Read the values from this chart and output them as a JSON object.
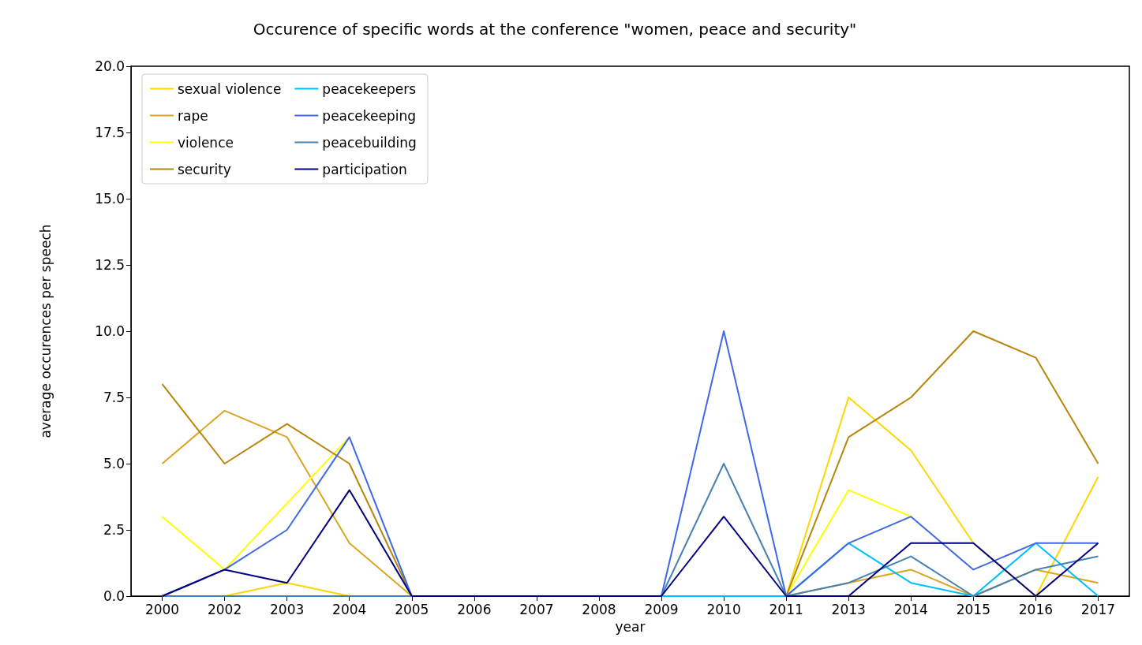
{
  "chart_data": {
    "type": "line",
    "title": "Occurence of specific words at the conference \"women, peace and security\"",
    "xlabel": "year",
    "ylabel": "average occurences per speech",
    "categories": [
      "2000",
      "2002",
      "2003",
      "2004",
      "2005",
      "2006",
      "2007",
      "2008",
      "2009",
      "2010",
      "2011",
      "2013",
      "2014",
      "2015",
      "2016",
      "2017"
    ],
    "series": [
      {
        "name": "sexual violence",
        "color": "#ffd700",
        "values": [
          0,
          0,
          0.5,
          0,
          0,
          0,
          0,
          0,
          0,
          0,
          0,
          7.5,
          5.5,
          2,
          0,
          4.5
        ]
      },
      {
        "name": "rape",
        "color": "#daa520",
        "values": [
          5,
          7,
          6,
          2,
          0,
          0,
          0,
          0,
          0,
          0,
          0,
          0.5,
          1,
          0,
          1,
          0.5
        ]
      },
      {
        "name": "violence",
        "color": "#ffff00",
        "values": [
          3,
          1,
          3.5,
          6,
          null,
          null,
          null,
          null,
          null,
          null,
          0,
          4,
          3,
          null,
          null,
          null
        ]
      },
      {
        "name": "security",
        "color": "#b8860b",
        "values": [
          8,
          5,
          6.5,
          5,
          0,
          0,
          0,
          0,
          0,
          0,
          0,
          6,
          7.5,
          10,
          9,
          5
        ]
      },
      {
        "name": "peacekeepers",
        "color": "#00bfff",
        "values": [
          null,
          null,
          null,
          null,
          null,
          null,
          null,
          0,
          0,
          0,
          0,
          2,
          0.5,
          0,
          2,
          0
        ]
      },
      {
        "name": "peacekeeping",
        "color": "#4169e1",
        "values": [
          0,
          1,
          2.5,
          6,
          0,
          0,
          0,
          0,
          0,
          10,
          0,
          2,
          3,
          1,
          2,
          2
        ]
      },
      {
        "name": "peacebuilding",
        "color": "#4682b4",
        "values": [
          0,
          0,
          0,
          0,
          0,
          0,
          0,
          0,
          0,
          5,
          0,
          0.5,
          1.5,
          0,
          1,
          1.5
        ]
      },
      {
        "name": "participation",
        "color": "#000080",
        "values": [
          0,
          1,
          0.5,
          4,
          0,
          0,
          0,
          0,
          0,
          3,
          0,
          0,
          2,
          2,
          0,
          2
        ]
      }
    ],
    "ylim": [
      0,
      20
    ],
    "yticks": [
      {
        "value": 0,
        "label": "0.0"
      },
      2.5,
      {
        "value": 5,
        "label": "5.0"
      },
      7.5,
      {
        "value": 10,
        "label": "10.0"
      },
      12.5,
      {
        "value": 15,
        "label": "15.0"
      },
      17.5,
      {
        "value": 20,
        "label": "20.0"
      }
    ],
    "grid": false,
    "legend": "top left",
    "marker": "none",
    "line_style": "solid"
  }
}
